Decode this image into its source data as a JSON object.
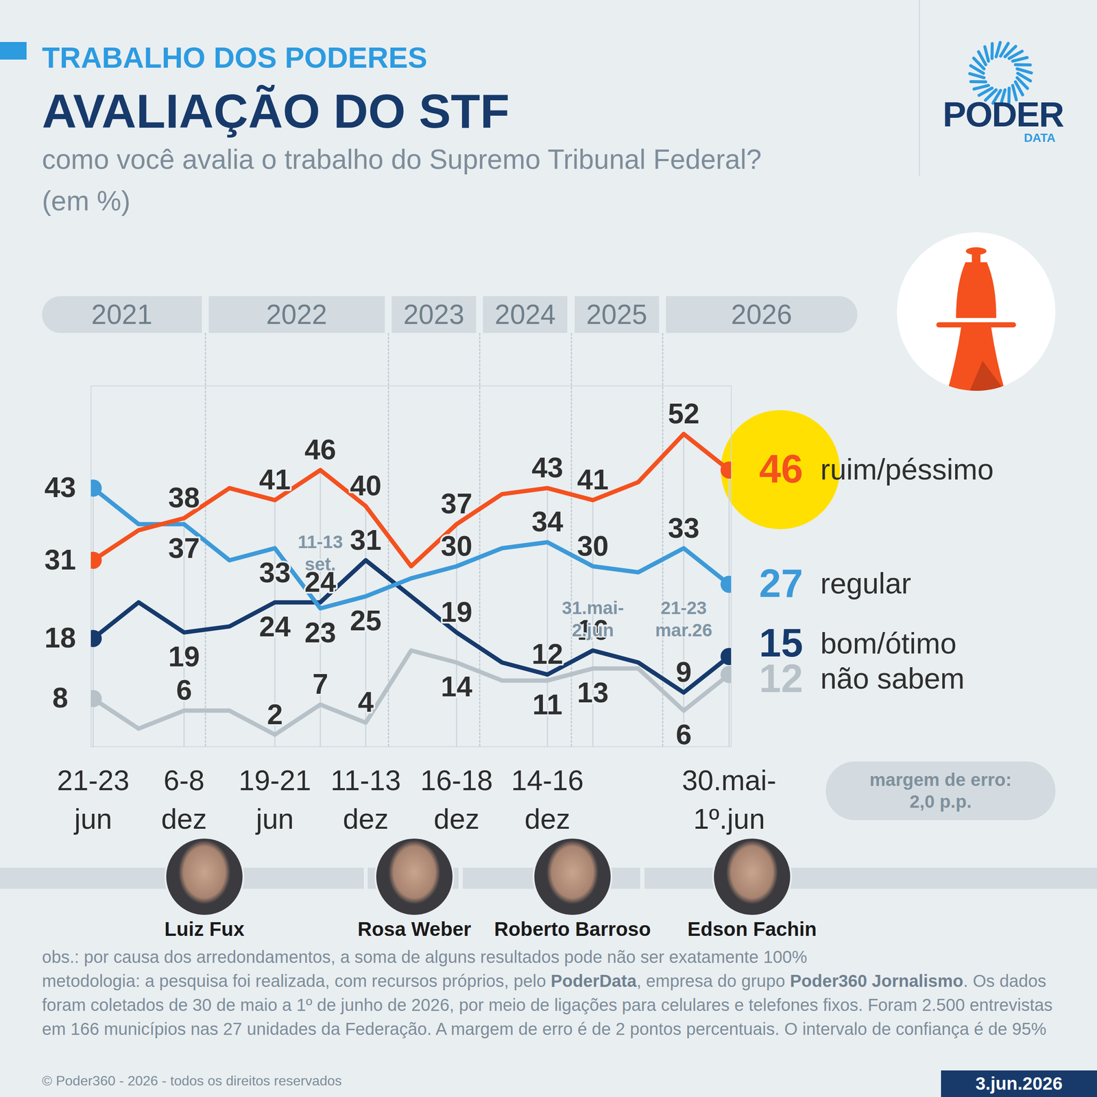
{
  "header": {
    "kicker": "TRABALHO DOS PODERES"
  },
  "logo": {
    "name": "PODER",
    "sub": "DATA"
  },
  "chart_data": {
    "type": "line",
    "title": "AVALIAÇÃO DO STF",
    "subtitle": "como você avalia o trabalho do Supremo Tribunal Federal?\n(em %)",
    "categories": [
      "21-23\njun",
      null,
      "6-8\ndez",
      null,
      "19-21\njun",
      null,
      "11-13\ndez",
      null,
      "16-18\ndez",
      null,
      "14-16\ndez",
      null,
      null,
      null,
      "30.mai-\n1º.jun"
    ],
    "periods": [
      {
        "label": "2021",
        "first": 0,
        "last": 2
      },
      {
        "label": "2022",
        "first": 3,
        "last": 6
      },
      {
        "label": "2023",
        "first": 7,
        "last": 8
      },
      {
        "label": "2024",
        "first": 9,
        "last": 10
      },
      {
        "label": "2025",
        "first": 11,
        "last": 12
      },
      {
        "label": "2026",
        "first": 13,
        "last": 14
      }
    ],
    "annotations": [
      {
        "x": 5,
        "text": "11-13\nset."
      },
      {
        "x": 11,
        "text": "31.mai-\n2.jun"
      },
      {
        "x": 13,
        "text": "21-23\nmar.26"
      }
    ],
    "ylim": [
      0,
      60
    ],
    "yticks": [],
    "tick_labels": "x",
    "data_labels": true,
    "marker": "circle",
    "series": [
      {
        "name": "ruim/péssimo",
        "color": "#f4511e",
        "values": [
          31,
          36,
          38,
          43,
          41,
          46,
          40,
          30,
          37,
          42,
          43,
          41,
          44,
          52,
          46
        ],
        "value_labels": [
          "31",
          null,
          "38",
          null,
          "41",
          "46",
          "40",
          null,
          "37",
          null,
          "43",
          "41",
          null,
          "52",
          "46"
        ]
      },
      {
        "name": "regular",
        "color": "#3d9ad8",
        "values": [
          43,
          37,
          37,
          31,
          33,
          23,
          25,
          28,
          30,
          33,
          34,
          30,
          29,
          33,
          27
        ],
        "value_labels": [
          "43",
          null,
          "37",
          null,
          "33",
          "23",
          "25",
          null,
          "30",
          null,
          "34",
          "30",
          null,
          "33",
          "27"
        ]
      },
      {
        "name": "bom/ótimo",
        "color": "#163a6c",
        "values": [
          18,
          24,
          19,
          20,
          24,
          24,
          31,
          25,
          19,
          14,
          12,
          16,
          14,
          9,
          15
        ],
        "value_labels": [
          "18",
          null,
          "19",
          null,
          "24",
          "24",
          "31",
          null,
          "19",
          null,
          "12",
          "16",
          null,
          "9",
          "15"
        ]
      },
      {
        "name": "não sabem",
        "color": "#b7c1c8",
        "values": [
          8,
          3,
          6,
          6,
          2,
          7,
          4,
          16,
          14,
          11,
          11,
          13,
          13,
          6,
          12
        ],
        "value_labels": [
          "8",
          null,
          "6",
          null,
          "2",
          "7",
          "4",
          null,
          "14",
          null,
          "11",
          "13",
          null,
          "6",
          "12"
        ]
      }
    ]
  },
  "margin_note": "margem de erro:\n2,0 p.p.",
  "presidents": [
    "Luiz Fux",
    "Rosa Weber",
    "Roberto Barroso",
    "Edson Fachin"
  ],
  "footer": {
    "obs": "obs.: por causa dos arredondamentos, a soma de alguns resultados pode não ser exatamente 100%",
    "methodology": [
      "metodologia: a pesquisa foi realizada, com recursos próprios, pelo ",
      "PoderData",
      ", empresa do grupo ",
      "Poder360 Jornalismo",
      ". Os dados foram coletados de 30 de maio a 1º de junho de 2026, por meio de ligações para celulares e telefones fixos. Foram 2.500 entrevistas em 166 municípios nas 27 unidades da Federação. A margem de erro é de 2 pontos percentuais. O intervalo de confiança é de 95%"
    ],
    "copyright": "© Poder360 - 2026 - todos os direitos reservados",
    "date": "3.jun.2026"
  }
}
